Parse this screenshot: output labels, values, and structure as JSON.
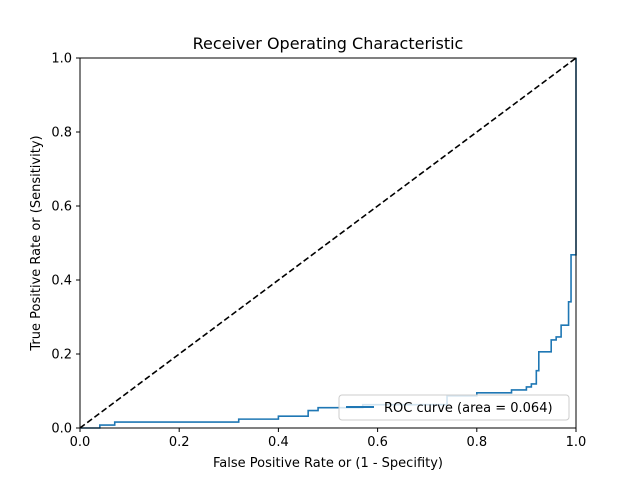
{
  "chart_data": {
    "type": "line",
    "title": "Receiver Operating Characteristic",
    "xlabel": "False Positive Rate or (1 - Specifity)",
    "ylabel": "True Positive Rate or (Sensitivity)",
    "xlim": [
      0.0,
      1.0
    ],
    "ylim": [
      0.0,
      1.0
    ],
    "xticks": [
      "0.0",
      "0.2",
      "0.4",
      "0.6",
      "0.8",
      "1.0"
    ],
    "yticks": [
      "0.0",
      "0.2",
      "0.4",
      "0.6",
      "0.8",
      "1.0"
    ],
    "grid": false,
    "legend_position": "lower right",
    "series": [
      {
        "name": "ROC curve (area = 0.064)",
        "color": "#1f77b4",
        "style": "solid",
        "x": [
          0.0,
          0.04,
          0.04,
          0.07,
          0.07,
          0.32,
          0.32,
          0.4,
          0.4,
          0.46,
          0.46,
          0.48,
          0.48,
          0.57,
          0.57,
          0.74,
          0.74,
          0.8,
          0.8,
          0.87,
          0.87,
          0.9,
          0.9,
          0.91,
          0.91,
          0.92,
          0.92,
          0.925,
          0.925,
          0.93,
          0.93,
          0.95,
          0.95,
          0.96,
          0.96,
          0.97,
          0.97,
          0.985,
          0.985,
          0.99,
          0.99,
          1.0,
          1.0
        ],
        "y": [
          0.0,
          0.0,
          0.008,
          0.008,
          0.016,
          0.016,
          0.024,
          0.024,
          0.032,
          0.032,
          0.047,
          0.047,
          0.055,
          0.055,
          0.063,
          0.063,
          0.087,
          0.087,
          0.095,
          0.095,
          0.103,
          0.103,
          0.111,
          0.111,
          0.119,
          0.119,
          0.155,
          0.155,
          0.206,
          0.206,
          0.206,
          0.206,
          0.238,
          0.238,
          0.246,
          0.246,
          0.278,
          0.278,
          0.341,
          0.341,
          0.468,
          0.468,
          1.0
        ]
      },
      {
        "name": "",
        "color": "#000000",
        "style": "dashed",
        "x": [
          0.0,
          1.0
        ],
        "y": [
          0.0,
          1.0
        ]
      }
    ],
    "legend": [
      {
        "label": "ROC curve (area = 0.064)",
        "color": "#1f77b4"
      }
    ]
  }
}
